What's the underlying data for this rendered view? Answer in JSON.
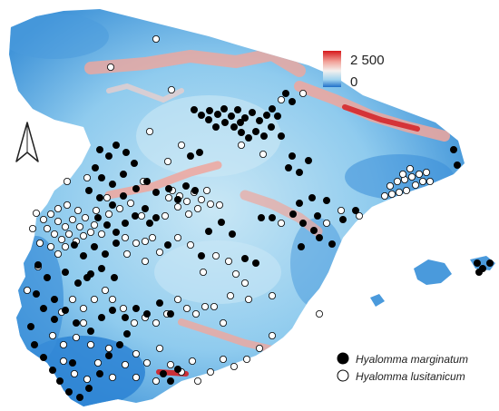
{
  "elevation_scale": {
    "max_label": "2 500",
    "min_label": "0",
    "colors": [
      "#1f6fc9",
      "#9fd3ef",
      "#f4f0ee",
      "#f2a39a",
      "#d7191c"
    ]
  },
  "north_arrow": {
    "icon": "north-arrow-icon"
  },
  "legend": {
    "items": [
      {
        "label": "Hyalomma marginatum",
        "symbol": "filled-circle",
        "color": "#000000"
      },
      {
        "label": "Hyalomma lusitanicum",
        "symbol": "open-circle",
        "color": "#ffffff"
      }
    ]
  },
  "map_colors": {
    "low": "#2a7fd0",
    "mid": "#8ecdee",
    "plateau": "#c4e4f3",
    "high": "#f0a69c",
    "peak": "#d42025",
    "sea": "#ffffff"
  },
  "occurrences": {
    "hyalomma_marginatum": [
      [
        214,
        121
      ],
      [
        222,
        127
      ],
      [
        231,
        122
      ],
      [
        240,
        126
      ],
      [
        247,
        120
      ],
      [
        255,
        128
      ],
      [
        262,
        121
      ],
      [
        270,
        130
      ],
      [
        278,
        124
      ],
      [
        286,
        133
      ],
      [
        294,
        127
      ],
      [
        300,
        120
      ],
      [
        306,
        128
      ],
      [
        258,
        140
      ],
      [
        266,
        146
      ],
      [
        274,
        152
      ],
      [
        282,
        145
      ],
      [
        291,
        150
      ],
      [
        299,
        140
      ],
      [
        265,
        135
      ],
      [
        248,
        135
      ],
      [
        238,
        140
      ],
      [
        230,
        132
      ],
      [
        315,
        103
      ],
      [
        322,
        112
      ],
      [
        310,
        150
      ],
      [
        322,
        172
      ],
      [
        330,
        190
      ],
      [
        318,
        185
      ],
      [
        340,
        177
      ],
      [
        344,
        218
      ],
      [
        330,
        224
      ],
      [
        323,
        236
      ],
      [
        334,
        246
      ],
      [
        346,
        254
      ],
      [
        350,
        238
      ],
      [
        360,
        221
      ],
      [
        352,
        262
      ],
      [
        366,
        269
      ],
      [
        378,
        242
      ],
      [
        392,
        232
      ],
      [
        300,
        240
      ],
      [
        288,
        240
      ],
      [
        270,
        285
      ],
      [
        282,
        290
      ],
      [
        332,
        272
      ],
      [
        110,
        165
      ],
      [
        120,
        172
      ],
      [
        128,
        160
      ],
      [
        139,
        168
      ],
      [
        105,
        185
      ],
      [
        112,
        196
      ],
      [
        124,
        203
      ],
      [
        136,
        192
      ],
      [
        148,
        180
      ],
      [
        98,
        210
      ],
      [
        110,
        218
      ],
      [
        124,
        226
      ],
      [
        136,
        216
      ],
      [
        150,
        208
      ],
      [
        162,
        200
      ],
      [
        172,
        212
      ],
      [
        186,
        208
      ],
      [
        108,
        240
      ],
      [
        118,
        248
      ],
      [
        128,
        256
      ],
      [
        138,
        246
      ],
      [
        149,
        238
      ],
      [
        160,
        230
      ],
      [
        172,
        240
      ],
      [
        82,
        270
      ],
      [
        92,
        282
      ],
      [
        104,
        272
      ],
      [
        116,
        280
      ],
      [
        128,
        268
      ],
      [
        72,
        300
      ],
      [
        86,
        312
      ],
      [
        100,
        302
      ],
      [
        112,
        296
      ],
      [
        126,
        306
      ],
      [
        42,
        292
      ],
      [
        52,
        306
      ],
      [
        40,
        324
      ],
      [
        60,
        330
      ],
      [
        72,
        342
      ],
      [
        84,
        356
      ],
      [
        100,
        365
      ],
      [
        112,
        350
      ],
      [
        124,
        342
      ],
      [
        138,
        350
      ],
      [
        150,
        340
      ],
      [
        162,
        346
      ],
      [
        176,
        334
      ],
      [
        188,
        346
      ],
      [
        34,
        360
      ],
      [
        38,
        380
      ],
      [
        48,
        394
      ],
      [
        58,
        408
      ],
      [
        66,
        420
      ],
      [
        76,
        432
      ],
      [
        88,
        438
      ],
      [
        98,
        428
      ],
      [
        110,
        412
      ],
      [
        80,
        400
      ],
      [
        120,
        392
      ],
      [
        132,
        380
      ],
      [
        140,
        368
      ],
      [
        180,
        412
      ],
      [
        188,
        420
      ],
      [
        196,
        407
      ],
      [
        220,
        168
      ],
      [
        210,
        172
      ],
      [
        205,
        205
      ],
      [
        215,
        210
      ],
      [
        196,
        220
      ],
      [
        165,
        246
      ],
      [
        185,
        270
      ],
      [
        230,
        255
      ],
      [
        244,
        245
      ],
      [
        256,
        258
      ],
      [
        222,
        282
      ],
      [
        500,
        165
      ],
      [
        504,
        182
      ],
      [
        526,
        290
      ],
      [
        532,
        296
      ],
      [
        540,
        290
      ],
      [
        528,
        300
      ],
      [
        96,
        306
      ],
      [
        60,
        352
      ],
      [
        48,
        340
      ]
    ],
    "hyalomma_lusitanicum": [
      [
        172,
        43
      ],
      [
        122,
        74
      ],
      [
        189,
        99
      ],
      [
        310,
        110
      ],
      [
        334,
        103
      ],
      [
        165,
        145
      ],
      [
        185,
        178
      ],
      [
        158,
        200
      ],
      [
        200,
        160
      ],
      [
        190,
        210
      ],
      [
        198,
        216
      ],
      [
        206,
        222
      ],
      [
        214,
        212
      ],
      [
        222,
        220
      ],
      [
        228,
        210
      ],
      [
        232,
        225
      ],
      [
        218,
        230
      ],
      [
        208,
        236
      ],
      [
        196,
        228
      ],
      [
        186,
        218
      ],
      [
        430,
        205
      ],
      [
        438,
        200
      ],
      [
        446,
        198
      ],
      [
        454,
        195
      ],
      [
        462,
        192
      ],
      [
        470,
        190
      ],
      [
        458,
        204
      ],
      [
        448,
        210
      ],
      [
        440,
        212
      ],
      [
        432,
        214
      ],
      [
        424,
        216
      ],
      [
        466,
        200
      ],
      [
        452,
        186
      ],
      [
        444,
        192
      ],
      [
        474,
        200
      ],
      [
        40,
        235
      ],
      [
        48,
        242
      ],
      [
        56,
        236
      ],
      [
        64,
        244
      ],
      [
        72,
        250
      ],
      [
        80,
        242
      ],
      [
        88,
        250
      ],
      [
        52,
        252
      ],
      [
        60,
        258
      ],
      [
        68,
        264
      ],
      [
        76,
        258
      ],
      [
        84,
        266
      ],
      [
        92,
        260
      ],
      [
        100,
        256
      ],
      [
        44,
        268
      ],
      [
        56,
        272
      ],
      [
        64,
        280
      ],
      [
        72,
        272
      ],
      [
        36,
        252
      ],
      [
        64,
        230
      ],
      [
        74,
        226
      ],
      [
        86,
        232
      ],
      [
        94,
        240
      ],
      [
        104,
        248
      ],
      [
        112,
        258
      ],
      [
        120,
        236
      ],
      [
        132,
        230
      ],
      [
        144,
        224
      ],
      [
        156,
        238
      ],
      [
        168,
        262
      ],
      [
        150,
        268
      ],
      [
        140,
        280
      ],
      [
        160,
        288
      ],
      [
        176,
        278
      ],
      [
        196,
        262
      ],
      [
        210,
        270
      ],
      [
        224,
        300
      ],
      [
        238,
        282
      ],
      [
        252,
        288
      ],
      [
        260,
        302
      ],
      [
        270,
        312
      ],
      [
        196,
        330
      ],
      [
        206,
        340
      ],
      [
        216,
        346
      ],
      [
        226,
        338
      ],
      [
        184,
        346
      ],
      [
        172,
        356
      ],
      [
        160,
        350
      ],
      [
        148,
        356
      ],
      [
        136,
        340
      ],
      [
        124,
        330
      ],
      [
        116,
        320
      ],
      [
        104,
        330
      ],
      [
        92,
        340
      ],
      [
        80,
        330
      ],
      [
        68,
        344
      ],
      [
        92,
        356
      ],
      [
        100,
        380
      ],
      [
        84,
        372
      ],
      [
        70,
        380
      ],
      [
        58,
        370
      ],
      [
        70,
        398
      ],
      [
        82,
        412
      ],
      [
        96,
        418
      ],
      [
        108,
        400
      ],
      [
        124,
        416
      ],
      [
        138,
        402
      ],
      [
        150,
        390
      ],
      [
        162,
        400
      ],
      [
        176,
        384
      ],
      [
        188,
        402
      ],
      [
        200,
        410
      ],
      [
        212,
        398
      ],
      [
        218,
        420
      ],
      [
        232,
        410
      ],
      [
        246,
        396
      ],
      [
        258,
        404
      ],
      [
        272,
        396
      ],
      [
        286,
        384
      ],
      [
        300,
        370
      ],
      [
        246,
        356
      ],
      [
        236,
        338
      ],
      [
        254,
        326
      ],
      [
        274,
        330
      ],
      [
        300,
        326
      ],
      [
        310,
        246
      ],
      [
        360,
        246
      ],
      [
        376,
        232
      ],
      [
        396,
        238
      ],
      [
        352,
        346
      ],
      [
        172,
        420
      ],
      [
        150,
        416
      ],
      [
        120,
        384
      ],
      [
        42,
        294
      ],
      [
        30,
        320
      ],
      [
        74,
        200
      ],
      [
        96,
        196
      ],
      [
        106,
        232
      ],
      [
        118,
        218
      ],
      [
        138,
        262
      ],
      [
        160,
        266
      ],
      [
        182,
        238
      ],
      [
        242,
        226
      ],
      [
        266,
        160
      ],
      [
        290,
        170
      ]
    ]
  }
}
